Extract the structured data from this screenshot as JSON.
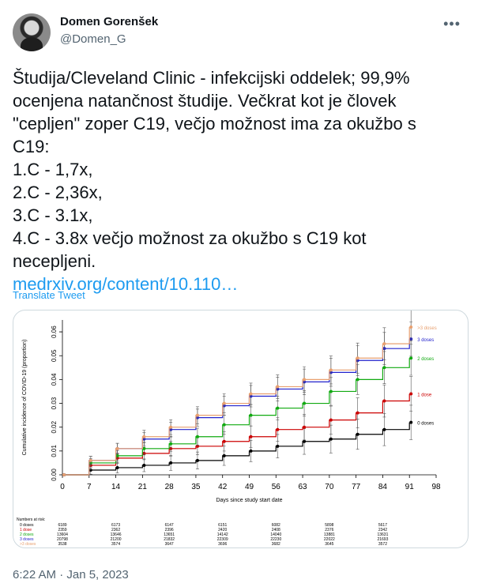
{
  "author": {
    "name": "Domen Gorenšek",
    "handle": "@Domen_G"
  },
  "menu_icon": "more-dots-icon",
  "tweet": {
    "lines": [
      "Študija/Cleveland Clinic - infekcijski oddelek; 99,9%",
      "ocenjena natančnost študije. Večkrat kot je človek",
      "\"cepljen\" zoper C19, večjo možnost ima za okužbo s",
      "C19:",
      "1.C - 1,7x,",
      "2.C - 2,36x,",
      "3.C - 3.1x,",
      "4.C - 3.8x večjo možnost za okužbo s C19 kot",
      "necepljeni."
    ],
    "link": "medrxiv.org/content/10.110…",
    "translate": "Translate Tweet"
  },
  "timestamp": "6:22 AM · Jan 5, 2023",
  "chart_data": {
    "type": "line",
    "ylabel": "Cumulative incidence of COVID-19 (proportion)",
    "xlabel": "Days since study start date",
    "xlim": [
      0,
      98
    ],
    "ylim": [
      0,
      0.065
    ],
    "x_ticks": [
      "0",
      "7",
      "14",
      "21",
      "28",
      "35",
      "42",
      "49",
      "56",
      "63",
      "70",
      "77",
      "84",
      "91",
      "98"
    ],
    "y_ticks": [
      "0.00",
      "0.01",
      "0.02",
      "0.03",
      "0.04",
      "0.05",
      "0.06"
    ],
    "series": [
      {
        "name": "0 doses",
        "color": "#000000",
        "x": [
          0,
          7,
          14,
          21,
          28,
          35,
          42,
          49,
          56,
          63,
          70,
          77,
          84,
          91
        ],
        "y": [
          0,
          0.002,
          0.003,
          0.004,
          0.005,
          0.006,
          0.008,
          0.01,
          0.012,
          0.014,
          0.015,
          0.017,
          0.019,
          0.022
        ]
      },
      {
        "name": "1 dose",
        "color": "#cc0000",
        "x": [
          0,
          7,
          14,
          21,
          28,
          35,
          42,
          49,
          56,
          63,
          70,
          77,
          84,
          91
        ],
        "y": [
          0,
          0.004,
          0.007,
          0.009,
          0.011,
          0.012,
          0.014,
          0.016,
          0.019,
          0.02,
          0.023,
          0.026,
          0.031,
          0.034
        ]
      },
      {
        "name": "2 doses",
        "color": "#11aa11",
        "x": [
          0,
          7,
          14,
          21,
          28,
          35,
          42,
          49,
          56,
          63,
          70,
          77,
          84,
          91
        ],
        "y": [
          0,
          0.005,
          0.008,
          0.011,
          0.013,
          0.016,
          0.021,
          0.025,
          0.028,
          0.03,
          0.035,
          0.04,
          0.045,
          0.049
        ]
      },
      {
        "name": "3 doses",
        "color": "#2222cc",
        "x": [
          0,
          7,
          14,
          21,
          28,
          35,
          42,
          49,
          56,
          63,
          70,
          77,
          84,
          91
        ],
        "y": [
          0,
          0.006,
          0.011,
          0.015,
          0.019,
          0.024,
          0.029,
          0.033,
          0.036,
          0.039,
          0.043,
          0.048,
          0.053,
          0.057
        ]
      },
      {
        "name": ">3 doses",
        "color": "#e8a070",
        "x": [
          0,
          7,
          14,
          21,
          28,
          35,
          42,
          49,
          56,
          63,
          70,
          77,
          84,
          91
        ],
        "y": [
          0,
          0.006,
          0.011,
          0.016,
          0.02,
          0.025,
          0.03,
          0.034,
          0.037,
          0.04,
          0.044,
          0.049,
          0.055,
          0.062
        ]
      }
    ],
    "risk_table": {
      "title": "Numbers at risk:",
      "rows": [
        {
          "label": "0 doses",
          "color": "#000000",
          "values": [
            "6189",
            "6173",
            "6147",
            "6151",
            "6082",
            "5898",
            "5617"
          ]
        },
        {
          "label": "1 dose",
          "color": "#cc0000",
          "values": [
            "2359",
            "2362",
            "2396",
            "2420",
            "2408",
            "2376",
            "2342"
          ]
        },
        {
          "label": "2 doses",
          "color": "#11aa11",
          "values": [
            "13604",
            "13646",
            "13651",
            "14142",
            "14040",
            "13881",
            "13631"
          ]
        },
        {
          "label": "3 doses",
          "color": "#2222cc",
          "values": [
            "20798",
            "21200",
            "21832",
            "22309",
            "22230",
            "22022",
            "21693"
          ]
        },
        {
          "label": ">3 doses",
          "color": "#e8a070",
          "values": [
            "3538",
            "3574",
            "3647",
            "3696",
            "3682",
            "3645",
            "3572"
          ]
        }
      ]
    }
  }
}
